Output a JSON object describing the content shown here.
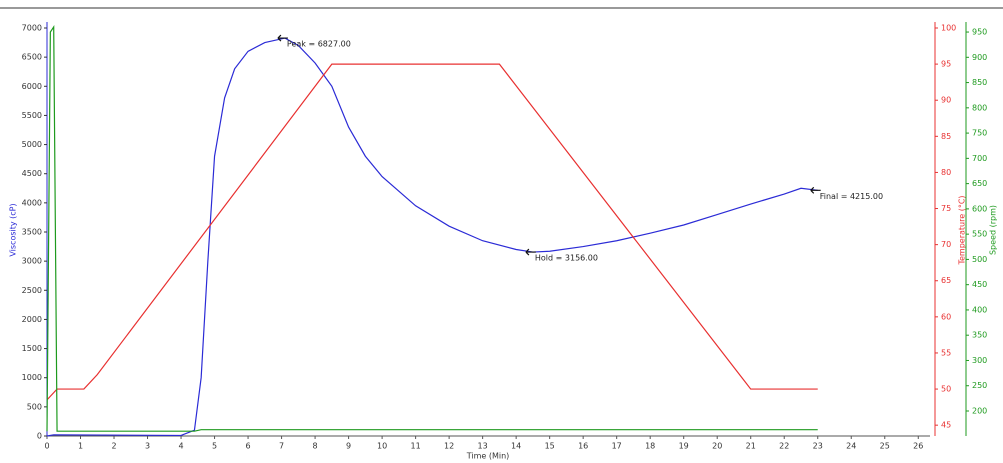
{
  "chart_data": {
    "type": "line",
    "xlabel": "Time (Min)",
    "ylabel": "Viscosity (cP)",
    "y2label": "Temperature (°C)",
    "y3label": "Speed (rpm)",
    "xlim": [
      0,
      26.35
    ],
    "xticks": [
      0,
      1,
      2,
      3,
      4,
      5,
      6,
      7,
      8,
      9,
      10,
      11,
      12,
      13,
      14,
      15,
      16,
      17,
      18,
      19,
      20,
      21,
      22,
      23,
      24,
      25,
      26
    ],
    "ylim": [
      0,
      7000
    ],
    "yticks": [
      0,
      500,
      1000,
      1500,
      2000,
      2500,
      3000,
      3500,
      4000,
      4500,
      5000,
      5500,
      6000,
      6500,
      7000
    ],
    "y2lim": [
      43.5,
      100
    ],
    "y2ticks": [
      45,
      50,
      55,
      60,
      65,
      70,
      75,
      80,
      85,
      90,
      95,
      100
    ],
    "y3lim": [
      150.5,
      958
    ],
    "y3ticks": [
      200,
      250,
      300,
      350,
      400,
      450,
      500,
      550,
      600,
      650,
      700,
      750,
      800,
      850,
      900,
      950
    ],
    "series": [
      {
        "color": "#2b2bd6",
        "axis": "y",
        "x": [
          0,
          0.2,
          4.0,
          4.4,
          4.6,
          4.8,
          5.0,
          5.3,
          5.6,
          6.0,
          6.5,
          7.1,
          7.5,
          8.0,
          8.5,
          9.0,
          9.5,
          10,
          11,
          12,
          13,
          14,
          14.5,
          15,
          16,
          17,
          18,
          19,
          20,
          21,
          22,
          22.5,
          23
        ],
        "values": [
          0,
          20,
          10,
          100,
          1000,
          3000,
          4800,
          5800,
          6300,
          6600,
          6750,
          6827,
          6700,
          6400,
          6000,
          5300,
          4800,
          4450,
          3950,
          3600,
          3350,
          3200,
          3156,
          3170,
          3250,
          3350,
          3480,
          3620,
          3800,
          3980,
          4150,
          4250,
          4215
        ]
      },
      {
        "color": "#e83030",
        "axis": "y2",
        "x": [
          0,
          0.3,
          1.1,
          1.5,
          8.5,
          13.5,
          21,
          23
        ],
        "values": [
          48.5,
          50,
          50,
          52,
          95,
          95,
          50,
          50
        ]
      },
      {
        "color": "#1e9a1e",
        "axis": "y3",
        "x": [
          0,
          0.1,
          0.2,
          0.3,
          4.4,
          4.6,
          23
        ],
        "values": [
          160,
          950,
          960,
          160,
          160,
          163,
          163
        ]
      }
    ],
    "annotations": [
      {
        "text": "Peak = 6827.00",
        "x": 7.1,
        "y": 6827
      },
      {
        "text": "Hold = 3156.00",
        "x": 14.5,
        "y": 3156
      },
      {
        "text": "Final = 4215.00",
        "x": 23,
        "y": 4215
      }
    ]
  }
}
